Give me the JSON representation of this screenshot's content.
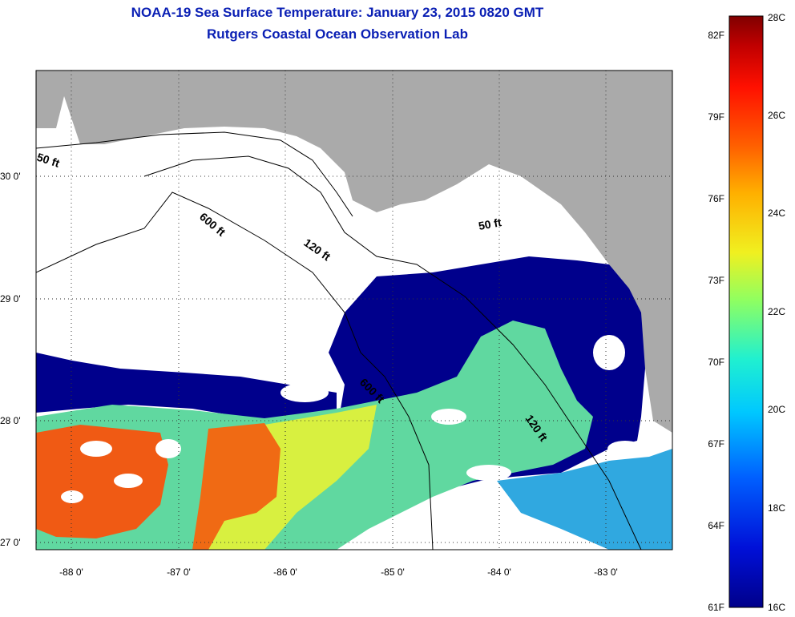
{
  "title": {
    "line1": "NOAA-19 Sea Surface Temperature:  January 23, 2015 0820 GMT",
    "line2": "Rutgers Coastal Ocean Observation Lab"
  },
  "map": {
    "lat_ticks": [
      "30 0'",
      "29 0'",
      "28 0'",
      "27 0'"
    ],
    "lon_ticks": [
      "-88 0'",
      "-87 0'",
      "-86 0'",
      "-85 0'",
      "-84 0'",
      "-83 0'"
    ],
    "contour_labels": [
      "50 ft",
      "600 ft",
      "120 ft",
      "50 ft",
      "600 ft",
      "120 ft"
    ]
  },
  "colorbar": {
    "celsius_labels": [
      "28C",
      "26C",
      "24C",
      "22C",
      "20C",
      "18C",
      "16C"
    ],
    "fahrenheit_labels": [
      "82F",
      "79F",
      "76F",
      "73F",
      "70F",
      "67F",
      "64F",
      "61F"
    ],
    "colors": {
      "land": "#aaaaaa",
      "cloud": "#ffffff",
      "cold": "#00008c",
      "warm": "#f05a14"
    }
  }
}
